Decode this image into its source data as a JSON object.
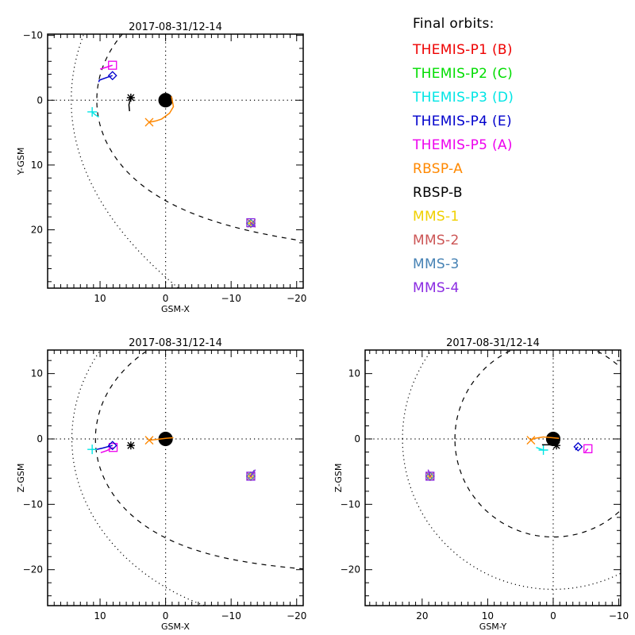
{
  "chart_data": [
    {
      "type": "scatter",
      "panel": "top-left",
      "title": "2017-08-31/12-14",
      "xlabel": "GSM-X",
      "ylabel": "Y-GSM",
      "xlim": [
        18,
        -21
      ],
      "ylim": [
        -10.2,
        29
      ],
      "y_reversed": true,
      "xticks": [
        10,
        0,
        -10,
        -20
      ],
      "yticks": [
        -10,
        0,
        10,
        20
      ],
      "x_minor_step": 1,
      "y_minor_step": 2,
      "earth": {
        "x": 0,
        "y": 0,
        "radius": 1.1
      },
      "zero_lines": true,
      "boundaries": [
        {
          "name": "magnetopause",
          "style": "dashed",
          "model": "shue",
          "r0": 10.5,
          "alpha": 0.562,
          "side": 1
        },
        {
          "name": "bow-shock",
          "style": "dotted",
          "model": "conic",
          "standoff": 14.4,
          "L": 27.3,
          "side": 1
        }
      ],
      "spacecraft": [
        {
          "name": "THEMIS-P5 (A)",
          "marker": "square",
          "x": 8.1,
          "y": -5.4,
          "trail": [
            [
              10.0,
              -4.8
            ],
            [
              9.0,
              -5.1
            ],
            [
              8.1,
              -5.4
            ]
          ]
        },
        {
          "name": "THEMIS-P4 (E)",
          "marker": "diamond",
          "x": 8.1,
          "y": -3.8,
          "trail": [
            [
              10.2,
              -2.8
            ],
            [
              10.1,
              -3.1
            ],
            [
              9.0,
              -3.5
            ],
            [
              8.1,
              -3.8
            ]
          ]
        },
        {
          "name": "THEMIS-P3 (D)",
          "marker": "plus",
          "x": 11.2,
          "y": 1.8,
          "trail": [
            [
              10.2,
              2.6
            ],
            [
              10.8,
              2.2
            ],
            [
              11.2,
              1.8
            ]
          ]
        },
        {
          "name": "RBSP-B",
          "marker": "asterisk",
          "x": 5.3,
          "y": -0.4,
          "trail": [
            [
              5.5,
              1.7
            ],
            [
              5.6,
              0.7
            ],
            [
              5.3,
              -0.4
            ]
          ]
        },
        {
          "name": "RBSP-A",
          "marker": "x",
          "x": 2.5,
          "y": 3.4,
          "trail": [
            [
              -0.9,
              -0.6
            ],
            [
              -1.2,
              1.0
            ],
            [
              -0.6,
              2.0
            ],
            [
              0.6,
              2.9
            ],
            [
              1.5,
              3.2
            ],
            [
              2.5,
              3.4
            ]
          ]
        },
        {
          "name": "MMS-1",
          "marker": "plus",
          "x": -13.0,
          "y": 19.0,
          "trail": [
            [
              -13.4,
              19.3
            ],
            [
              -13.0,
              19.0
            ]
          ]
        },
        {
          "name": "MMS-2",
          "marker": "x",
          "x": -13.1,
          "y": 19.0,
          "trail": [
            [
              -13.5,
              19.4
            ],
            [
              -13.1,
              19.0
            ]
          ]
        },
        {
          "name": "MMS-3",
          "marker": "diamond",
          "x": -13.0,
          "y": 19.0,
          "trail": [
            [
              -13.4,
              19.4
            ],
            [
              -13.0,
              19.0
            ]
          ]
        },
        {
          "name": "MMS-4",
          "marker": "square",
          "x": -13.0,
          "y": 18.9,
          "trail": [
            [
              -13.7,
              19.5
            ],
            [
              -13.0,
              18.9
            ]
          ]
        }
      ]
    },
    {
      "type": "scatter",
      "panel": "bottom-left",
      "title": "2017-08-31/12-14",
      "xlabel": "GSM-X",
      "ylabel": "Z-GSM",
      "xlim": [
        18,
        -21
      ],
      "ylim": [
        -25.5,
        13.6
      ],
      "y_reversed": false,
      "xticks": [
        10,
        0,
        -10,
        -20
      ],
      "yticks": [
        10,
        0,
        -10,
        -20
      ],
      "x_minor_step": 1,
      "y_minor_step": 2,
      "earth": {
        "x": 0,
        "y": 0,
        "radius": 1.1
      },
      "zero_lines": true,
      "boundaries": [
        {
          "name": "magnetopause",
          "style": "dashed",
          "model": "shue",
          "r0": 10.7,
          "alpha": 0.5,
          "side": -1
        },
        {
          "name": "bow-shock",
          "style": "dotted",
          "model": "conic",
          "standoff": 14.3,
          "L": 22.7,
          "side": -1
        }
      ],
      "spacecraft": [
        {
          "name": "THEMIS-P5 (A)",
          "marker": "square",
          "x": 8.0,
          "y": -1.3,
          "trail": [
            [
              9.9,
              -2.1
            ],
            [
              9.0,
              -1.8
            ],
            [
              8.0,
              -1.3
            ]
          ]
        },
        {
          "name": "THEMIS-P4 (E)",
          "marker": "diamond",
          "x": 8.1,
          "y": -1.0,
          "trail": [
            [
              10.5,
              -1.6
            ],
            [
              9.6,
              -1.4
            ],
            [
              8.1,
              -1.0
            ]
          ]
        },
        {
          "name": "THEMIS-P3 (D)",
          "marker": "plus",
          "x": 11.2,
          "y": -1.6,
          "trail": [
            [
              10.6,
              -1.6
            ],
            [
              11.2,
              -1.6
            ]
          ]
        },
        {
          "name": "RBSP-B",
          "marker": "asterisk",
          "x": 5.3,
          "y": -1.0,
          "trail": [
            [
              5.4,
              -0.9
            ],
            [
              5.3,
              -1.0
            ]
          ]
        },
        {
          "name": "RBSP-A",
          "marker": "x",
          "x": 2.5,
          "y": -0.2,
          "trail": [
            [
              -1.2,
              0.2
            ],
            [
              0.0,
              0.1
            ],
            [
              1.5,
              -0.1
            ],
            [
              2.5,
              -0.2
            ]
          ]
        },
        {
          "name": "MMS-1",
          "marker": "plus",
          "x": -13.0,
          "y": -5.7,
          "trail": [
            [
              -13.5,
              -4.9
            ],
            [
              -13.0,
              -5.7
            ]
          ]
        },
        {
          "name": "MMS-2",
          "marker": "x",
          "x": -13.0,
          "y": -5.7,
          "trail": [
            [
              -13.5,
              -4.8
            ],
            [
              -13.0,
              -5.7
            ]
          ]
        },
        {
          "name": "MMS-3",
          "marker": "diamond",
          "x": -13.0,
          "y": -5.7,
          "trail": [
            [
              -13.5,
              -4.8
            ],
            [
              -13.0,
              -5.7
            ]
          ]
        },
        {
          "name": "MMS-4",
          "marker": "square",
          "x": -13.0,
          "y": -5.7,
          "trail": [
            [
              -13.7,
              -4.7
            ],
            [
              -13.0,
              -5.7
            ]
          ]
        }
      ]
    },
    {
      "type": "scatter",
      "panel": "bottom-right",
      "title": "2017-08-31/12-14",
      "xlabel": "GSM-Y",
      "ylabel": "Z-GSM",
      "xlim": [
        28.7,
        -10.3
      ],
      "ylim": [
        -25.5,
        13.6
      ],
      "y_reversed": false,
      "xticks": [
        20,
        10,
        0,
        -10
      ],
      "yticks": [
        10,
        0,
        -10,
        -20
      ],
      "x_minor_step": 1,
      "y_minor_step": 2,
      "earth": {
        "x": 0,
        "y": 0,
        "radius": 1.1
      },
      "zero_lines": true,
      "boundaries": [
        {
          "name": "magnetopause",
          "style": "dashed",
          "model": "circle",
          "radius": 15
        },
        {
          "name": "bow-shock",
          "style": "dotted",
          "model": "circle",
          "radius": 23
        }
      ],
      "spacecraft": [
        {
          "name": "THEMIS-P5 (A)",
          "marker": "square",
          "x": -5.3,
          "y": -1.5,
          "trail": [
            [
              -4.9,
              -2.0
            ],
            [
              -5.1,
              -1.7
            ],
            [
              -5.3,
              -1.5
            ]
          ]
        },
        {
          "name": "THEMIS-P4 (E)",
          "marker": "diamond",
          "x": -3.8,
          "y": -1.2,
          "trail": [
            [
              -3.4,
              -1.7
            ],
            [
              -3.6,
              -1.4
            ],
            [
              -3.8,
              -1.2
            ]
          ]
        },
        {
          "name": "THEMIS-P3 (D)",
          "marker": "plus",
          "x": 1.5,
          "y": -1.7,
          "trail": [
            [
              2.6,
              -1.3
            ],
            [
              2.0,
              -1.5
            ],
            [
              1.5,
              -1.7
            ]
          ]
        },
        {
          "name": "RBSP-B",
          "marker": "asterisk",
          "x": -0.5,
          "y": -1.0,
          "trail": [
            [
              1.7,
              -0.9
            ],
            [
              0.6,
              -0.9
            ],
            [
              -0.5,
              -1.0
            ]
          ]
        },
        {
          "name": "RBSP-A",
          "marker": "x",
          "x": 3.4,
          "y": -0.2,
          "trail": [
            [
              -0.9,
              0.1
            ],
            [
              0.2,
              0.2
            ],
            [
              1.5,
              0.3
            ],
            [
              2.8,
              0.1
            ],
            [
              3.4,
              -0.2
            ]
          ]
        },
        {
          "name": "MMS-1",
          "marker": "plus",
          "x": 18.8,
          "y": -5.7,
          "trail": [
            [
              19.0,
              -5.0
            ],
            [
              18.8,
              -5.7
            ]
          ]
        },
        {
          "name": "MMS-2",
          "marker": "x",
          "x": 18.8,
          "y": -5.7,
          "trail": [
            [
              19.0,
              -5.0
            ],
            [
              18.8,
              -5.7
            ]
          ]
        },
        {
          "name": "MMS-3",
          "marker": "diamond",
          "x": 18.8,
          "y": -5.7,
          "trail": [
            [
              19.0,
              -5.0
            ],
            [
              18.8,
              -5.7
            ]
          ]
        },
        {
          "name": "MMS-4",
          "marker": "square",
          "x": 18.8,
          "y": -5.7,
          "trail": [
            [
              19.1,
              -4.7
            ],
            [
              18.9,
              -5.2
            ],
            [
              18.8,
              -5.7
            ]
          ]
        }
      ]
    }
  ],
  "legend": {
    "title": "Final orbits:",
    "placement": "top-right",
    "items": [
      {
        "label": "THEMIS-P1 (B)",
        "color": "#ee0000"
      },
      {
        "label": "THEMIS-P2 (C)",
        "color": "#00dd00"
      },
      {
        "label": "THEMIS-P3 (D)",
        "color": "#00e5e5"
      },
      {
        "label": "THEMIS-P4 (E)",
        "color": "#0000cc"
      },
      {
        "label": "THEMIS-P5 (A)",
        "color": "#ee00ee"
      },
      {
        "label": "RBSP-A",
        "color": "#ff8800"
      },
      {
        "label": "RBSP-B",
        "color": "#000000"
      },
      {
        "label": "MMS-1",
        "color": "#f0d000"
      },
      {
        "label": "MMS-2",
        "color": "#cc5555"
      },
      {
        "label": "MMS-3",
        "color": "#4682b4"
      },
      {
        "label": "MMS-4",
        "color": "#8a2be2"
      }
    ]
  }
}
